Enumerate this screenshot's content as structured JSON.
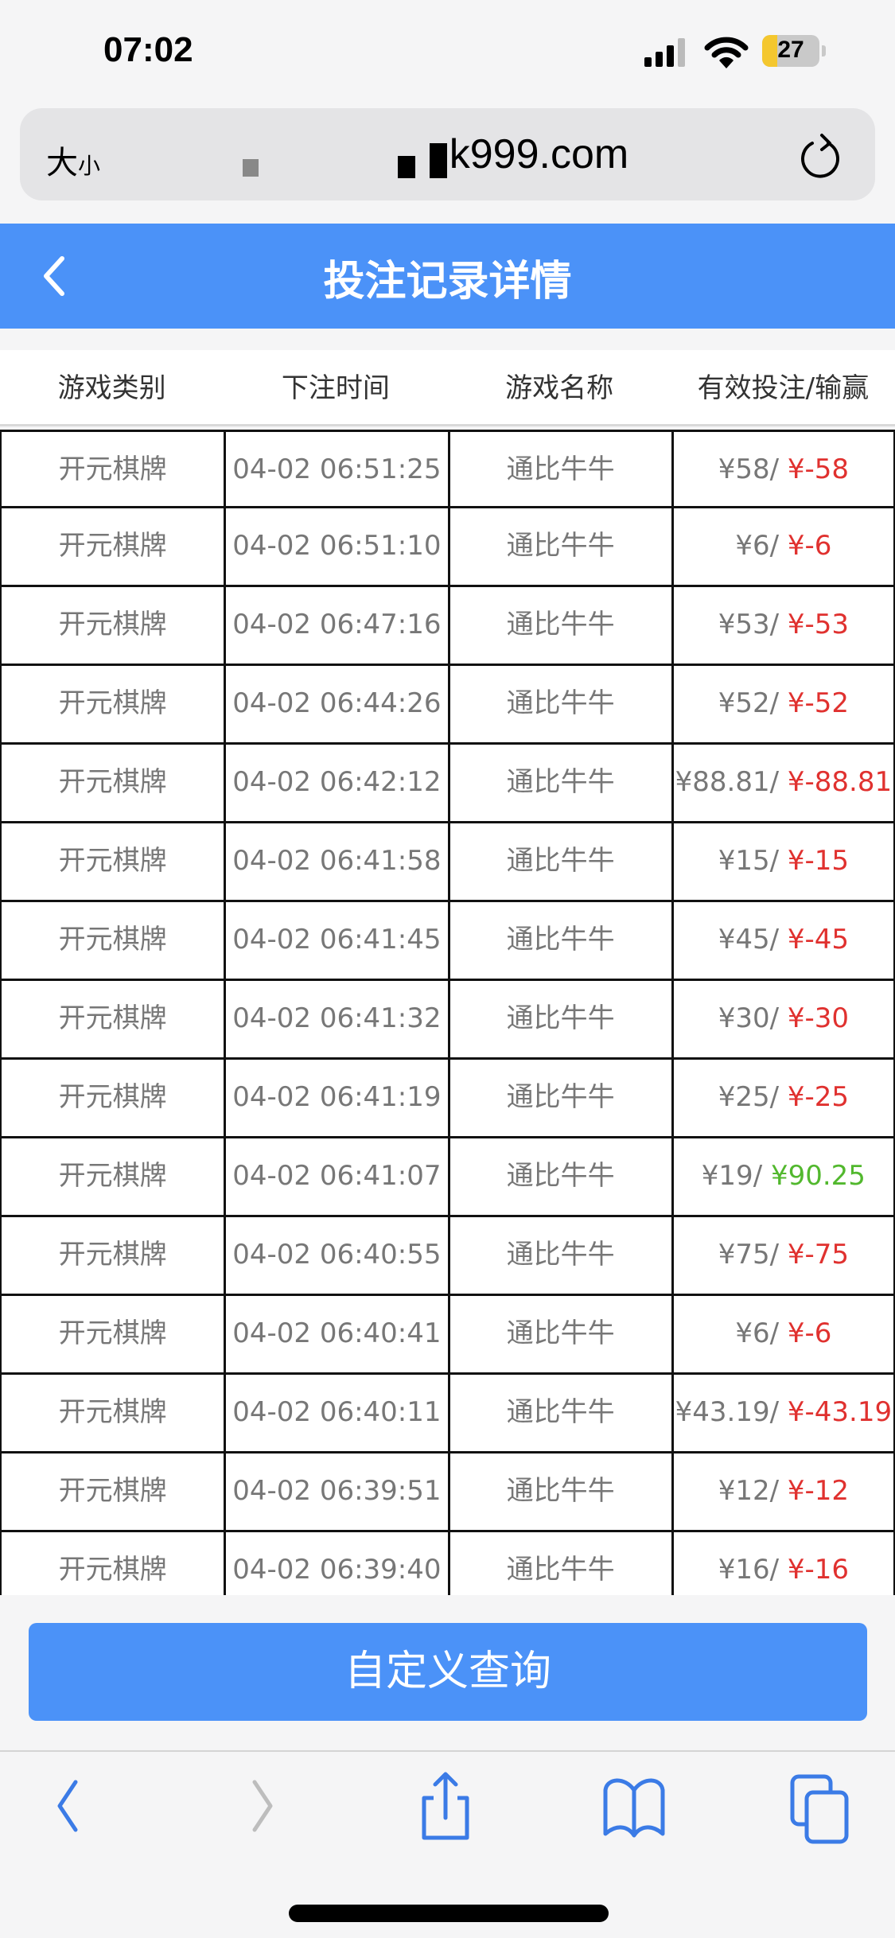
{
  "status_bar": {
    "time": "07:02",
    "battery": "27",
    "battery_level": 0.27
  },
  "browser": {
    "text_size_label_big": "大",
    "text_size_label_small": "小",
    "url": "k999.com"
  },
  "header": {
    "title": "投注记录详情"
  },
  "columns": [
    "游戏类别",
    "下注时间",
    "游戏名称",
    "有效投注/输赢"
  ],
  "rows": [
    {
      "category": "开元棋牌",
      "time": "04-02 06:51:25",
      "game": "通比牛牛",
      "bet": "¥58/",
      "result": "¥-58",
      "result_type": "loss"
    },
    {
      "category": "开元棋牌",
      "time": "04-02 06:51:10",
      "game": "通比牛牛",
      "bet": "¥6/",
      "result": "¥-6",
      "result_type": "loss"
    },
    {
      "category": "开元棋牌",
      "time": "04-02 06:47:16",
      "game": "通比牛牛",
      "bet": "¥53/",
      "result": "¥-53",
      "result_type": "loss"
    },
    {
      "category": "开元棋牌",
      "time": "04-02 06:44:26",
      "game": "通比牛牛",
      "bet": "¥52/",
      "result": "¥-52",
      "result_type": "loss"
    },
    {
      "category": "开元棋牌",
      "time": "04-02 06:42:12",
      "game": "通比牛牛",
      "bet": "¥88.81/",
      "result": "¥-88.81",
      "result_type": "loss"
    },
    {
      "category": "开元棋牌",
      "time": "04-02 06:41:58",
      "game": "通比牛牛",
      "bet": "¥15/",
      "result": "¥-15",
      "result_type": "loss"
    },
    {
      "category": "开元棋牌",
      "time": "04-02 06:41:45",
      "game": "通比牛牛",
      "bet": "¥45/",
      "result": "¥-45",
      "result_type": "loss"
    },
    {
      "category": "开元棋牌",
      "time": "04-02 06:41:32",
      "game": "通比牛牛",
      "bet": "¥30/",
      "result": "¥-30",
      "result_type": "loss"
    },
    {
      "category": "开元棋牌",
      "time": "04-02 06:41:19",
      "game": "通比牛牛",
      "bet": "¥25/",
      "result": "¥-25",
      "result_type": "loss"
    },
    {
      "category": "开元棋牌",
      "time": "04-02 06:41:07",
      "game": "通比牛牛",
      "bet": "¥19/",
      "result": "¥90.25",
      "result_type": "win"
    },
    {
      "category": "开元棋牌",
      "time": "04-02 06:40:55",
      "game": "通比牛牛",
      "bet": "¥75/",
      "result": "¥-75",
      "result_type": "loss"
    },
    {
      "category": "开元棋牌",
      "time": "04-02 06:40:41",
      "game": "通比牛牛",
      "bet": "¥6/",
      "result": "¥-6",
      "result_type": "loss"
    },
    {
      "category": "开元棋牌",
      "time": "04-02 06:40:11",
      "game": "通比牛牛",
      "bet": "¥43.19/",
      "result": "¥-43.19",
      "result_type": "loss"
    },
    {
      "category": "开元棋牌",
      "time": "04-02 06:39:51",
      "game": "通比牛牛",
      "bet": "¥12/",
      "result": "¥-12",
      "result_type": "loss"
    },
    {
      "category": "开元棋牌",
      "time": "04-02 06:39:40",
      "game": "通比牛牛",
      "bet": "¥16/",
      "result": "¥-16",
      "result_type": "loss"
    }
  ],
  "query_button": "自定义查询",
  "colors": {
    "accent": "#4b92f8",
    "loss": "#e0312f",
    "win": "#52b82e",
    "text_muted": "#777777"
  },
  "toolbar_icons": [
    "back-icon",
    "forward-icon",
    "share-icon",
    "bookmarks-icon",
    "tabs-icon"
  ]
}
